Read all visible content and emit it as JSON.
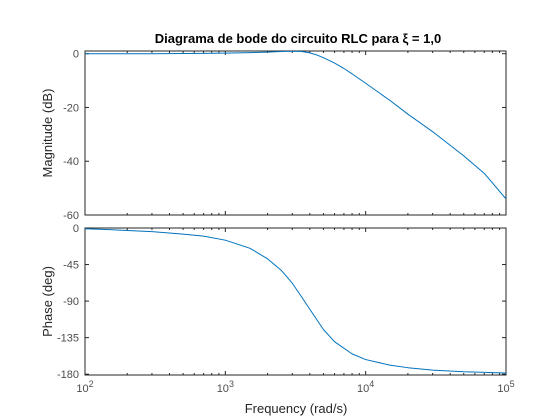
{
  "chart_data": {
    "type": "line",
    "title": "Diagrama de bode do circuito RLC para ξ = 1,0",
    "xlabel": "Frequency  (rad/s)",
    "xscale": "log",
    "xlim": [
      100,
      100000
    ],
    "x_ticks": [
      {
        "value": 100,
        "base": "10",
        "exp": "2"
      },
      {
        "value": 1000,
        "base": "10",
        "exp": "3"
      },
      {
        "value": 10000,
        "base": "10",
        "exp": "4"
      },
      {
        "value": 100000,
        "base": "10",
        "exp": "5"
      }
    ],
    "line_color": "#0072bd",
    "grid": false,
    "legend": "none",
    "subplots": [
      {
        "id": "magnitude",
        "ylabel": "Magnitude (dB)",
        "ylim": [
          -60,
          1
        ],
        "y_ticks": [
          0,
          -20,
          -40,
          -60
        ],
        "y_tick_labels": [
          "0",
          "-20",
          "-40",
          "-60"
        ],
        "show_x_tick_labels": false,
        "x": [
          100,
          200,
          300,
          500,
          700,
          1000,
          1500,
          2000,
          2500,
          3000,
          3500,
          4000,
          4500,
          5000,
          6000,
          7000,
          8000,
          10000,
          15000,
          20000,
          30000,
          50000,
          70000,
          100000
        ],
        "values": [
          0,
          0,
          0,
          0.05,
          0.1,
          0.2,
          0.4,
          0.6,
          0.8,
          0.9,
          0.8,
          0.3,
          -0.5,
          -1.5,
          -3.5,
          -5.5,
          -7.5,
          -11,
          -17.5,
          -22.5,
          -29,
          -38,
          -44.5,
          -54
        ]
      },
      {
        "id": "phase",
        "ylabel": "Phase (deg)",
        "ylim": [
          -181,
          0
        ],
        "y_ticks": [
          0,
          -45,
          -90,
          -135,
          -180
        ],
        "y_tick_labels": [
          "0",
          "-45",
          "-90",
          "-135",
          "-180"
        ],
        "show_x_tick_labels": true,
        "x": [
          100,
          150,
          200,
          300,
          500,
          700,
          1000,
          1500,
          2000,
          2500,
          3000,
          3500,
          4000,
          5000,
          6000,
          8000,
          10000,
          15000,
          20000,
          30000,
          50000,
          100000
        ],
        "values": [
          -1,
          -2,
          -3,
          -4.5,
          -7.5,
          -10,
          -15,
          -25,
          -38,
          -52,
          -68,
          -85,
          -100,
          -125,
          -140,
          -155,
          -162,
          -169,
          -172,
          -175,
          -177,
          -178.5
        ]
      }
    ]
  }
}
